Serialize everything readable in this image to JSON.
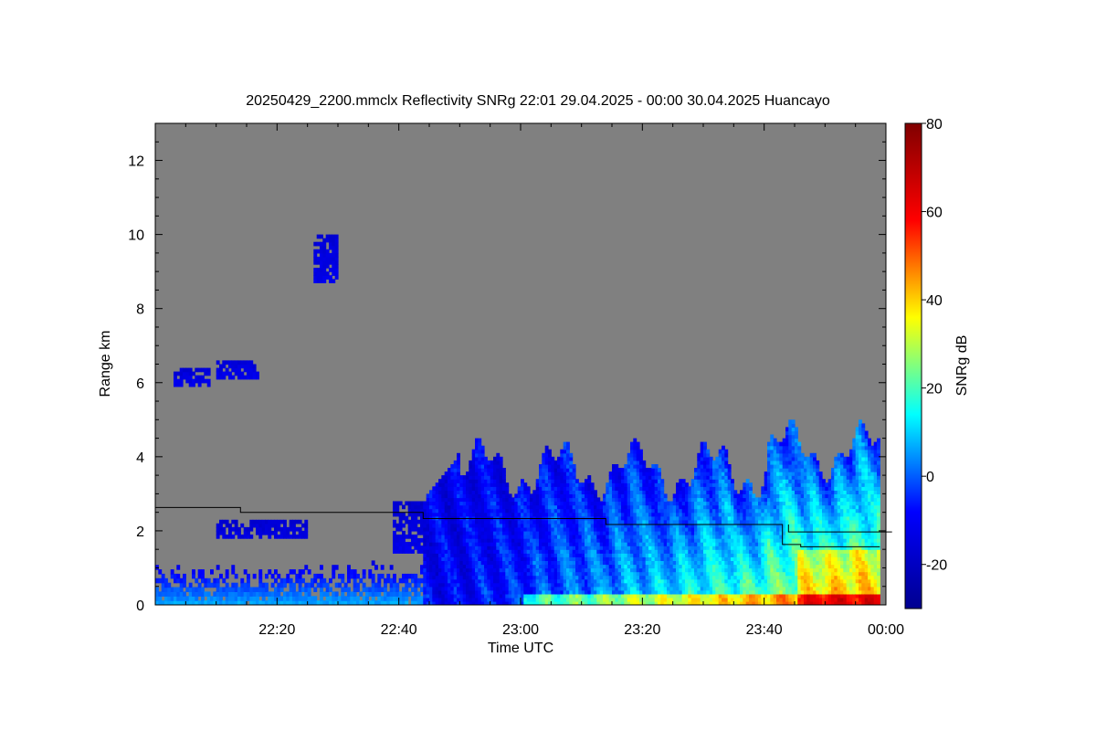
{
  "chart_data": {
    "type": "heatmap",
    "title": "20250429_2200.mmclx Reflectivity SNRg   22:01 29.04.2025 - 00:00 30.04.2025 Huancayo",
    "xlabel": "Time UTC",
    "ylabel": "Range km",
    "colorbar_label": "SNRg dB",
    "x_range_minutes": [
      0,
      120
    ],
    "xlim_utc": [
      "22:01",
      "00:00"
    ],
    "ylim_km": [
      0,
      13
    ],
    "clim_db": [
      -30,
      80
    ],
    "x_ticks": [
      {
        "minute": 20,
        "label": "22:20"
      },
      {
        "minute": 40,
        "label": "22:40"
      },
      {
        "minute": 60,
        "label": "23:00"
      },
      {
        "minute": 80,
        "label": "23:20"
      },
      {
        "minute": 100,
        "label": "23:40"
      },
      {
        "minute": 120,
        "label": "00:00"
      }
    ],
    "y_ticks": [
      {
        "value": 0,
        "label": "0"
      },
      {
        "value": 2,
        "label": "2"
      },
      {
        "value": 4,
        "label": "4"
      },
      {
        "value": 6,
        "label": "6"
      },
      {
        "value": 8,
        "label": "8"
      },
      {
        "value": 10,
        "label": "10"
      },
      {
        "value": 12,
        "label": "12"
      }
    ],
    "colorbar_ticks": [
      {
        "value": -20,
        "label": "-20"
      },
      {
        "value": 0,
        "label": "0"
      },
      {
        "value": 20,
        "label": "20"
      },
      {
        "value": 40,
        "label": "40"
      },
      {
        "value": 60,
        "label": "60"
      },
      {
        "value": 80,
        "label": "80"
      }
    ],
    "colormap": [
      "#00008f",
      "#0000ff",
      "#00ffff",
      "#ffff00",
      "#ff0000",
      "#800000"
    ],
    "background_color": "#808080",
    "line_series": {
      "color": "#000000",
      "points": [
        [
          0,
          2.63
        ],
        [
          14,
          2.63
        ],
        [
          14,
          2.5
        ],
        [
          44,
          2.5
        ],
        [
          44,
          2.33
        ],
        [
          74,
          2.33
        ],
        [
          74,
          2.17
        ],
        [
          103,
          2.17
        ],
        [
          103,
          1.63
        ],
        [
          106,
          1.63
        ],
        [
          106,
          1.57
        ],
        [
          119,
          1.57
        ]
      ]
    },
    "line_series_2": {
      "color": "#000000",
      "points": [
        [
          104,
          2.17
        ],
        [
          104,
          1.97
        ],
        [
          121,
          1.97
        ]
      ]
    },
    "cloud_regions": [
      {
        "t0": 0,
        "t1": 60,
        "h0": 0.0,
        "h1": 1.1,
        "snr_top": -14,
        "snr_bottom": 6,
        "kind": "clutter"
      },
      {
        "t0": 10,
        "t1": 25,
        "h0": 1.8,
        "h1": 2.3,
        "snr_top": -18,
        "snr_bottom": -14,
        "kind": "patch"
      },
      {
        "t0": 3,
        "t1": 9,
        "h0": 5.9,
        "h1": 6.3,
        "snr_top": -16,
        "snr_bottom": -12,
        "kind": "patch"
      },
      {
        "t0": 10,
        "t1": 17,
        "h0": 6.1,
        "h1": 6.5,
        "snr_top": -16,
        "snr_bottom": -12,
        "kind": "patch"
      },
      {
        "t0": 26,
        "t1": 30,
        "h0": 8.7,
        "h1": 9.9,
        "snr_top": -16,
        "snr_bottom": -12,
        "kind": "patch"
      },
      {
        "t0": 39,
        "t1": 50,
        "h0": 1.4,
        "h1": 2.8,
        "snr_top": -18,
        "snr_bottom": -12,
        "kind": "patch"
      },
      {
        "t0": 44,
        "t1": 119,
        "h0": 0.0,
        "h1": 4.5,
        "snr_top": -12,
        "snr_bottom": 55,
        "kind": "storm"
      }
    ]
  }
}
